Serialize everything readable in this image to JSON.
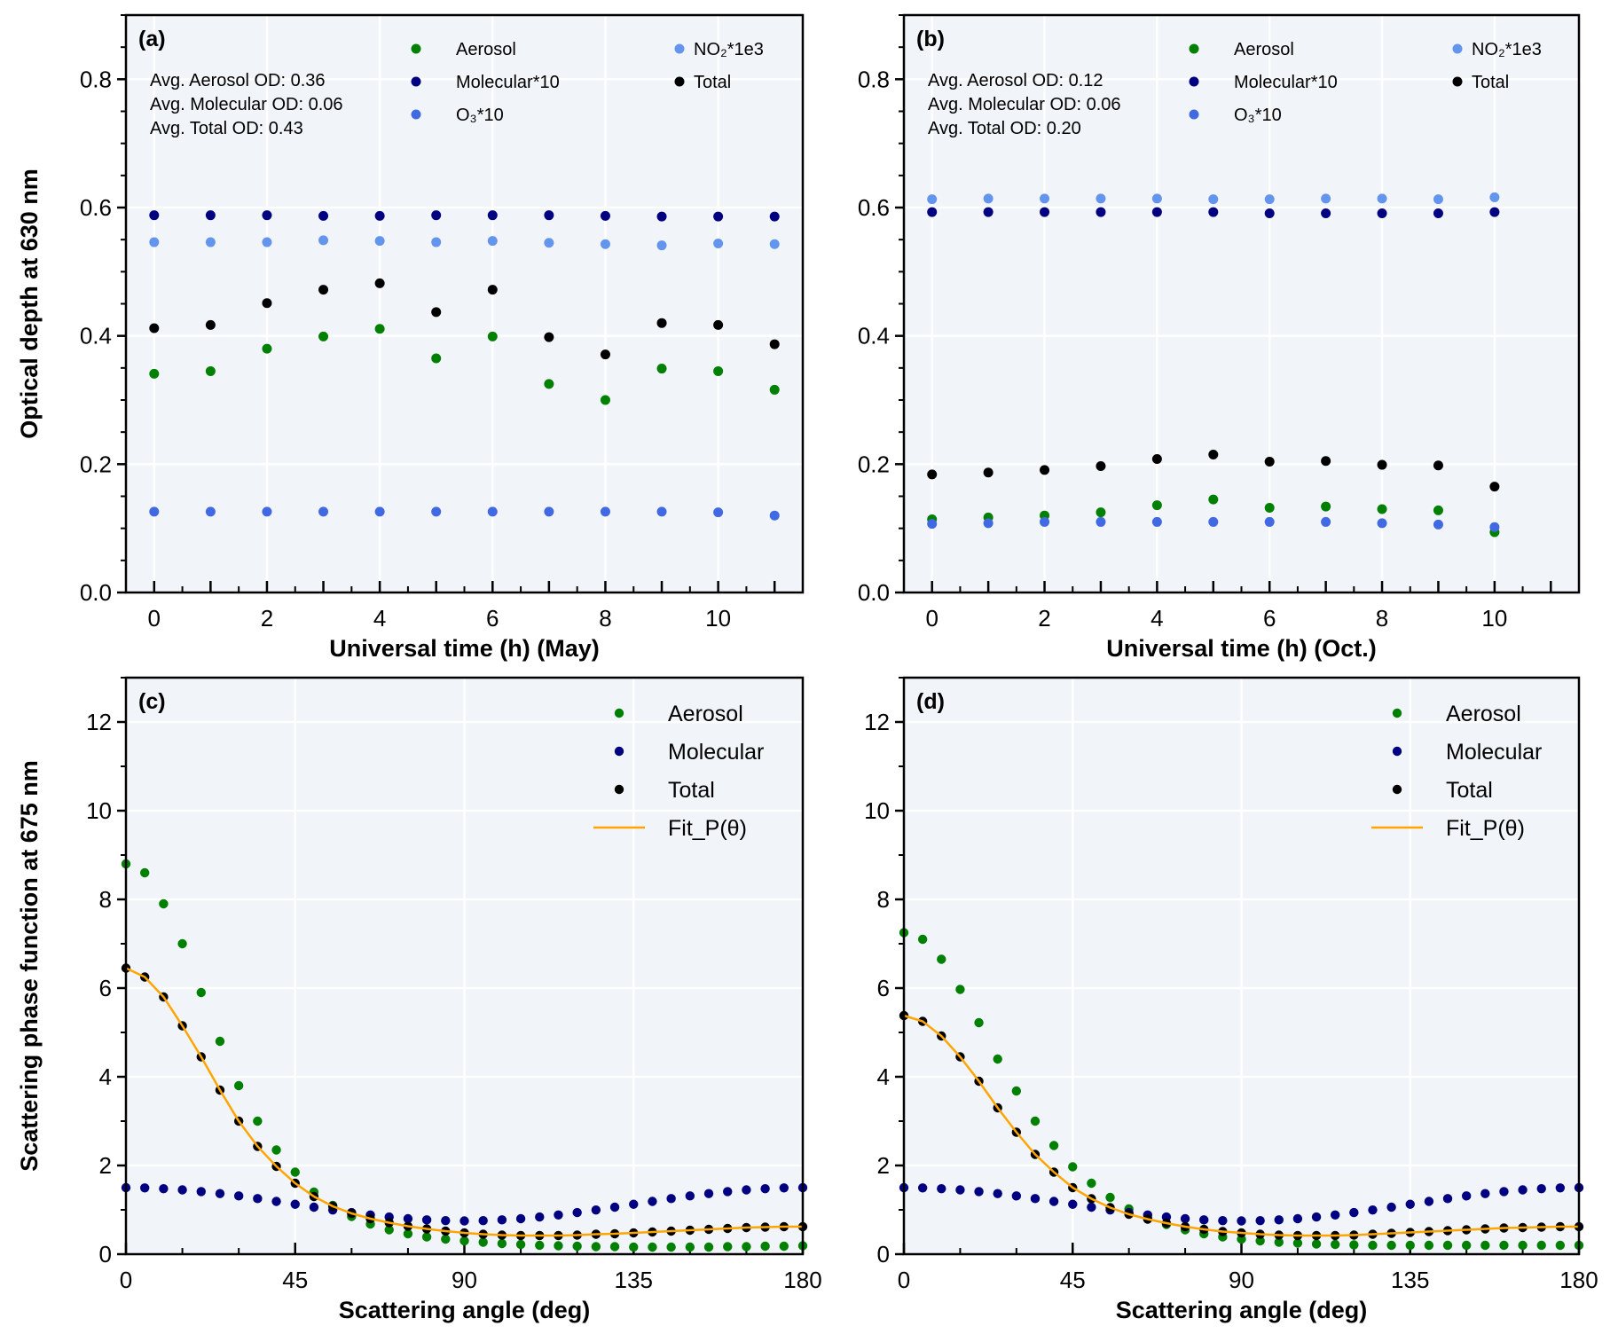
{
  "colors": {
    "aerosol": "#008000",
    "molecular": "#000080",
    "o3": "#4169E1",
    "no2": "#6495ED",
    "total": "#000000",
    "fit": "#FFA500",
    "axes_bg": "#F1F4F9",
    "grid": "#FFFFFF"
  },
  "chart_data": [
    {
      "panel": "a",
      "type": "scatter",
      "panel_label": "(a)",
      "xlabel": "Universal time (h) (May)",
      "ylabel": "Optical depth at 630 nm",
      "xlim": [
        -0.5,
        11.5
      ],
      "ylim": [
        0,
        0.9
      ],
      "xticks": [
        0,
        2,
        4,
        6,
        8,
        10
      ],
      "xtick_labels": [
        "0",
        "2",
        "4",
        "6",
        "8",
        "10"
      ],
      "yticks": [
        0,
        0.2,
        0.4,
        0.6,
        0.8
      ],
      "ytick_labels": [
        "0.0",
        "0.2",
        "0.4",
        "0.6",
        "0.8"
      ],
      "grid": true,
      "legend_placement": "top-right",
      "annotations": [
        "Avg. Aerosol OD: 0.36",
        "Avg. Molecular OD: 0.06",
        "Avg. Total OD: 0.43"
      ],
      "x": [
        0,
        1,
        2,
        3,
        4,
        5,
        6,
        7,
        8,
        9,
        10,
        11
      ],
      "series": [
        {
          "name": "Aerosol",
          "color_key": "aerosol",
          "values": [
            0.341,
            0.345,
            0.38,
            0.399,
            0.411,
            0.365,
            0.399,
            0.325,
            0.3,
            0.349,
            0.345,
            0.316
          ]
        },
        {
          "name": "Molecular*10",
          "color_key": "molecular",
          "values": [
            0.588,
            0.588,
            0.588,
            0.587,
            0.587,
            0.588,
            0.588,
            0.588,
            0.587,
            0.586,
            0.586,
            0.586
          ]
        },
        {
          "name": "O₃*10",
          "color_key": "o3",
          "values": [
            0.126,
            0.126,
            0.126,
            0.126,
            0.126,
            0.126,
            0.126,
            0.126,
            0.126,
            0.126,
            0.125,
            0.12
          ]
        },
        {
          "name": "NO₂*1e3",
          "color_key": "no2",
          "values": [
            0.546,
            0.546,
            0.546,
            0.549,
            0.548,
            0.546,
            0.548,
            0.545,
            0.543,
            0.541,
            0.544,
            0.543
          ]
        },
        {
          "name": "Total",
          "color_key": "total",
          "values": [
            0.412,
            0.417,
            0.451,
            0.472,
            0.482,
            0.437,
            0.472,
            0.398,
            0.371,
            0.42,
            0.417,
            0.387
          ]
        }
      ]
    },
    {
      "panel": "b",
      "type": "scatter",
      "panel_label": "(b)",
      "xlabel": "Universal time (h) (Oct.)",
      "ylabel": "",
      "xlim": [
        -0.5,
        11.5
      ],
      "ylim": [
        0,
        0.9
      ],
      "xticks": [
        0,
        2,
        4,
        6,
        8,
        10
      ],
      "xtick_labels": [
        "0",
        "2",
        "4",
        "6",
        "8",
        "10"
      ],
      "yticks": [
        0,
        0.2,
        0.4,
        0.6,
        0.8
      ],
      "ytick_labels": [
        "0.0",
        "0.2",
        "0.4",
        "0.6",
        "0.8"
      ],
      "grid": true,
      "legend_placement": "top-right",
      "annotations": [
        "Avg. Aerosol OD: 0.12",
        "Avg. Molecular OD: 0.06",
        "Avg. Total OD: 0.20"
      ],
      "x": [
        0,
        1,
        2,
        3,
        4,
        5,
        6,
        7,
        8,
        9,
        10
      ],
      "series": [
        {
          "name": "Aerosol",
          "color_key": "aerosol",
          "values": [
            0.114,
            0.117,
            0.12,
            0.125,
            0.136,
            0.145,
            0.132,
            0.134,
            0.13,
            0.128,
            0.094
          ]
        },
        {
          "name": "Molecular*10",
          "color_key": "molecular",
          "values": [
            0.593,
            0.593,
            0.593,
            0.593,
            0.593,
            0.593,
            0.591,
            0.591,
            0.591,
            0.591,
            0.593
          ]
        },
        {
          "name": "O₃*10",
          "color_key": "o3",
          "values": [
            0.107,
            0.108,
            0.11,
            0.11,
            0.11,
            0.11,
            0.11,
            0.11,
            0.108,
            0.106,
            0.102
          ]
        },
        {
          "name": "NO₂*1e3",
          "color_key": "no2",
          "values": [
            0.613,
            0.614,
            0.614,
            0.614,
            0.614,
            0.613,
            0.613,
            0.614,
            0.614,
            0.613,
            0.616
          ]
        },
        {
          "name": "Total",
          "color_key": "total",
          "values": [
            0.184,
            0.187,
            0.191,
            0.197,
            0.208,
            0.215,
            0.204,
            0.205,
            0.199,
            0.198,
            0.165
          ]
        }
      ]
    },
    {
      "panel": "c",
      "type": "scatter",
      "panel_label": "(c)",
      "xlabel": "Scattering angle (deg)",
      "ylabel": "Scattering phase function at 675 nm",
      "xlim": [
        0,
        180
      ],
      "ylim": [
        0,
        13
      ],
      "xticks": [
        0,
        45,
        90,
        135,
        180
      ],
      "xtick_labels": [
        "0",
        "45",
        "90",
        "135",
        "180"
      ],
      "yticks": [
        0,
        2,
        4,
        6,
        8,
        10,
        12
      ],
      "ytick_labels": [
        "0",
        "2",
        "4",
        "6",
        "8",
        "10",
        "12"
      ],
      "grid": true,
      "legend_placement": "top-right",
      "x": [
        0,
        5,
        10,
        15,
        20,
        25,
        30,
        35,
        40,
        45,
        50,
        55,
        60,
        65,
        70,
        75,
        80,
        85,
        90,
        95,
        100,
        105,
        110,
        115,
        120,
        125,
        130,
        135,
        140,
        145,
        150,
        155,
        160,
        165,
        170,
        175,
        180
      ],
      "series": [
        {
          "name": "Aerosol",
          "color_key": "aerosol",
          "values": [
            8.8,
            8.6,
            7.9,
            7.0,
            5.9,
            4.8,
            3.8,
            3.0,
            2.35,
            1.85,
            1.4,
            1.1,
            0.85,
            0.68,
            0.55,
            0.46,
            0.39,
            0.34,
            0.3,
            0.27,
            0.24,
            0.22,
            0.2,
            0.19,
            0.18,
            0.17,
            0.17,
            0.16,
            0.16,
            0.16,
            0.16,
            0.16,
            0.17,
            0.17,
            0.18,
            0.18,
            0.19
          ]
        },
        {
          "name": "Molecular",
          "color_key": "molecular",
          "values": [
            1.5,
            1.494,
            1.477,
            1.45,
            1.412,
            1.366,
            1.313,
            1.253,
            1.19,
            1.125,
            1.06,
            0.997,
            0.938,
            0.884,
            0.838,
            0.8,
            0.773,
            0.756,
            0.75,
            0.756,
            0.773,
            0.8,
            0.838,
            0.884,
            0.938,
            0.997,
            1.06,
            1.125,
            1.19,
            1.253,
            1.313,
            1.366,
            1.412,
            1.45,
            1.477,
            1.494,
            1.5
          ]
        },
        {
          "name": "Total",
          "color_key": "total",
          "values": [
            6.45,
            6.25,
            5.8,
            5.15,
            4.45,
            3.7,
            3.0,
            2.43,
            1.98,
            1.6,
            1.3,
            1.08,
            0.92,
            0.8,
            0.71,
            0.63,
            0.57,
            0.52,
            0.48,
            0.45,
            0.43,
            0.42,
            0.42,
            0.42,
            0.43,
            0.45,
            0.46,
            0.48,
            0.5,
            0.52,
            0.54,
            0.56,
            0.58,
            0.6,
            0.61,
            0.62,
            0.62
          ]
        },
        {
          "name": "Fit_P(θ)",
          "color_key": "fit",
          "line": true,
          "values": [
            6.45,
            6.25,
            5.8,
            5.15,
            4.45,
            3.7,
            3.0,
            2.43,
            1.98,
            1.6,
            1.3,
            1.08,
            0.92,
            0.8,
            0.71,
            0.63,
            0.57,
            0.52,
            0.48,
            0.45,
            0.43,
            0.42,
            0.42,
            0.42,
            0.43,
            0.45,
            0.46,
            0.48,
            0.5,
            0.52,
            0.54,
            0.56,
            0.58,
            0.6,
            0.61,
            0.62,
            0.62
          ]
        }
      ]
    },
    {
      "panel": "d",
      "type": "scatter",
      "panel_label": "(d)",
      "xlabel": "Scattering angle (deg)",
      "ylabel": "",
      "xlim": [
        0,
        180
      ],
      "ylim": [
        0,
        13
      ],
      "xticks": [
        0,
        45,
        90,
        135,
        180
      ],
      "xtick_labels": [
        "0",
        "45",
        "90",
        "135",
        "180"
      ],
      "yticks": [
        0,
        2,
        4,
        6,
        8,
        10,
        12
      ],
      "ytick_labels": [
        "0",
        "2",
        "4",
        "6",
        "8",
        "10",
        "12"
      ],
      "grid": true,
      "legend_placement": "top-right",
      "x": [
        0,
        5,
        10,
        15,
        20,
        25,
        30,
        35,
        40,
        45,
        50,
        55,
        60,
        65,
        70,
        75,
        80,
        85,
        90,
        95,
        100,
        105,
        110,
        115,
        120,
        125,
        130,
        135,
        140,
        145,
        150,
        155,
        160,
        165,
        170,
        175,
        180
      ],
      "series": [
        {
          "name": "Aerosol",
          "color_key": "aerosol",
          "values": [
            7.25,
            7.1,
            6.65,
            5.97,
            5.22,
            4.4,
            3.68,
            3.0,
            2.45,
            1.97,
            1.6,
            1.28,
            1.02,
            0.82,
            0.67,
            0.55,
            0.46,
            0.39,
            0.34,
            0.3,
            0.27,
            0.25,
            0.23,
            0.22,
            0.21,
            0.2,
            0.2,
            0.2,
            0.2,
            0.2,
            0.2,
            0.2,
            0.2,
            0.2,
            0.2,
            0.2,
            0.2
          ]
        },
        {
          "name": "Molecular",
          "color_key": "molecular",
          "values": [
            1.5,
            1.494,
            1.477,
            1.45,
            1.412,
            1.366,
            1.313,
            1.253,
            1.19,
            1.125,
            1.06,
            0.997,
            0.938,
            0.884,
            0.838,
            0.8,
            0.773,
            0.756,
            0.75,
            0.756,
            0.773,
            0.8,
            0.838,
            0.884,
            0.938,
            0.997,
            1.06,
            1.125,
            1.19,
            1.253,
            1.313,
            1.366,
            1.412,
            1.45,
            1.477,
            1.494,
            1.5
          ]
        },
        {
          "name": "Total",
          "color_key": "total",
          "values": [
            5.38,
            5.25,
            4.92,
            4.45,
            3.9,
            3.3,
            2.75,
            2.25,
            1.85,
            1.5,
            1.25,
            1.05,
            0.9,
            0.79,
            0.7,
            0.62,
            0.56,
            0.51,
            0.48,
            0.45,
            0.43,
            0.42,
            0.42,
            0.42,
            0.43,
            0.45,
            0.47,
            0.49,
            0.51,
            0.53,
            0.55,
            0.57,
            0.59,
            0.6,
            0.61,
            0.62,
            0.62
          ]
        },
        {
          "name": "Fit_P(θ)",
          "color_key": "fit",
          "line": true,
          "values": [
            5.38,
            5.25,
            4.92,
            4.45,
            3.9,
            3.3,
            2.75,
            2.25,
            1.85,
            1.5,
            1.25,
            1.05,
            0.9,
            0.79,
            0.7,
            0.62,
            0.56,
            0.51,
            0.48,
            0.45,
            0.43,
            0.42,
            0.42,
            0.42,
            0.43,
            0.45,
            0.47,
            0.49,
            0.51,
            0.53,
            0.55,
            0.57,
            0.59,
            0.6,
            0.61,
            0.62,
            0.62
          ]
        }
      ]
    }
  ]
}
